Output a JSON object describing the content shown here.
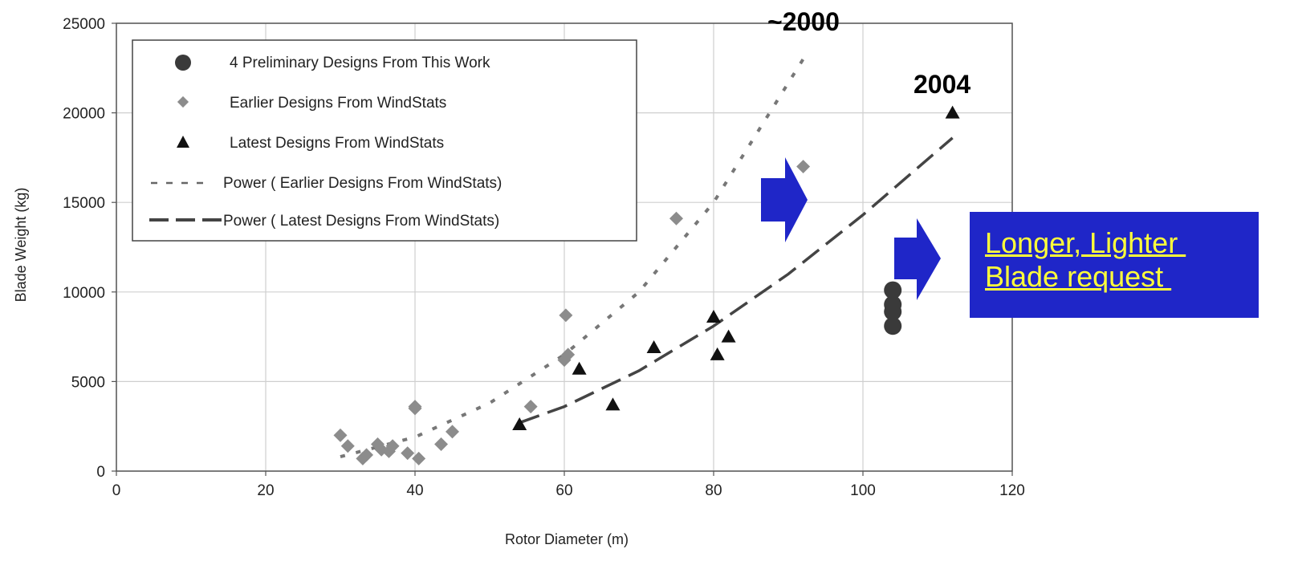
{
  "chart_data": {
    "type": "scatter",
    "xlabel": "Rotor Diameter (m)",
    "ylabel": "Blade  Weight (kg)",
    "xlim": [
      0,
      120
    ],
    "ylim": [
      0,
      25000
    ],
    "xticks": [
      0,
      20,
      40,
      60,
      80,
      100,
      120
    ],
    "yticks": [
      0,
      5000,
      10000,
      15000,
      20000,
      25000
    ],
    "grid": true,
    "legend_position": "top-left",
    "series": [
      {
        "name": "4 Preliminary Designs From This Work",
        "marker": "circle",
        "color": "#3a3a3a",
        "points": [
          [
            104,
            8100
          ],
          [
            104,
            8900
          ],
          [
            104,
            9300
          ],
          [
            104,
            10100
          ]
        ]
      },
      {
        "name": "Earlier Designs From WindStats",
        "marker": "diamond",
        "color": "#8c8c8c",
        "points": [
          [
            30,
            2000
          ],
          [
            31,
            1400
          ],
          [
            33,
            700
          ],
          [
            33.5,
            900
          ],
          [
            35,
            1500
          ],
          [
            35.5,
            1200
          ],
          [
            36.5,
            1100
          ],
          [
            37,
            1400
          ],
          [
            39,
            1000
          ],
          [
            40,
            3500
          ],
          [
            40,
            3600
          ],
          [
            40.5,
            700
          ],
          [
            43.5,
            1500
          ],
          [
            45,
            2200
          ],
          [
            55.5,
            3600
          ],
          [
            60,
            6200
          ],
          [
            60.2,
            8700
          ],
          [
            60.5,
            6500
          ],
          [
            75,
            14100
          ],
          [
            92,
            17000
          ]
        ]
      },
      {
        "name": "Latest Designs From WindStats",
        "marker": "triangle",
        "color": "#111111",
        "points": [
          [
            54,
            2600
          ],
          [
            62,
            5700
          ],
          [
            66.5,
            3700
          ],
          [
            72,
            6900
          ],
          [
            80,
            8600
          ],
          [
            80.5,
            6500
          ],
          [
            82,
            7500
          ],
          [
            112,
            20000
          ]
        ]
      },
      {
        "name": "Power ( Earlier Designs From WindStats)",
        "line": "dotted",
        "color": "#777777",
        "points": [
          [
            30,
            800
          ],
          [
            40,
            1900
          ],
          [
            50,
            3800
          ],
          [
            60,
            6500
          ],
          [
            70,
            10000
          ],
          [
            80,
            15000
          ],
          [
            92,
            23000
          ]
        ]
      },
      {
        "name": "Power ( Latest Designs From WindStats)",
        "line": "dashed",
        "color": "#444444",
        "points": [
          [
            54,
            2700
          ],
          [
            60,
            3600
          ],
          [
            70,
            5600
          ],
          [
            80,
            8100
          ],
          [
            90,
            11000
          ],
          [
            100,
            14300
          ],
          [
            112,
            18600
          ]
        ]
      }
    ]
  },
  "annotations": {
    "year_2000": "~2000",
    "year_2004": "2004",
    "callout_line1": "Longer, Lighter ",
    "callout_line2": "Blade request ",
    "arrow_color": "#1f26c8",
    "callout_bg": "#1f26c8",
    "callout_text_color": "#ffff3a"
  }
}
